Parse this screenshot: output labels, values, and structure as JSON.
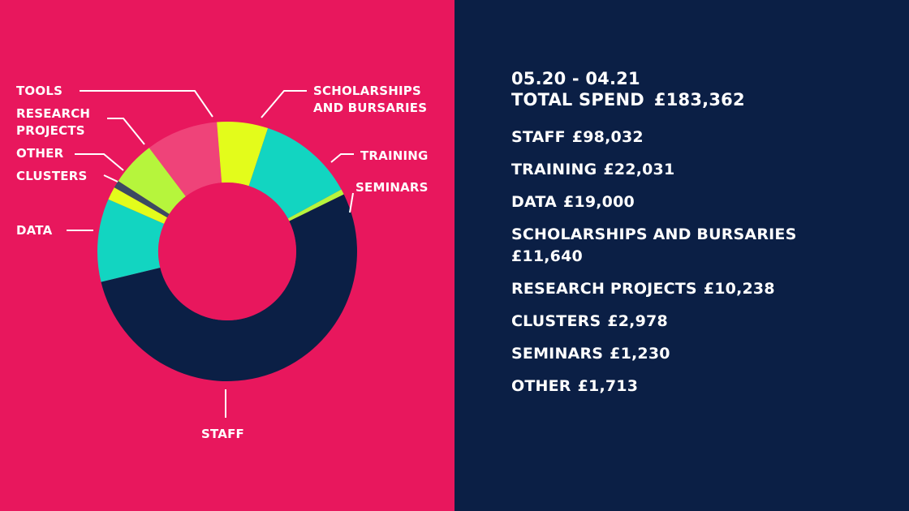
{
  "colors": {
    "left_background": "#e8175d",
    "right_background": "#0b1f45",
    "text": "#ffffff"
  },
  "summary": {
    "period": "05.20 - 04.21",
    "total_label": "TOTAL SPEND",
    "total_value": "£183,362"
  },
  "breakdown": [
    {
      "name": "STAFF",
      "amount": "£98,032"
    },
    {
      "name": "TRAINING",
      "amount": "£22,031"
    },
    {
      "name": "DATA",
      "amount": "£19,000"
    },
    {
      "name": "SCHOLARSHIPS AND BURSARIES",
      "amount": "£11,640"
    },
    {
      "name": "RESEARCH PROJECTS",
      "amount": "£10,238"
    },
    {
      "name": "CLUSTERS",
      "amount": "£2,978"
    },
    {
      "name": "SEMINARS",
      "amount": "£1,230"
    },
    {
      "name": "OTHER",
      "amount": "£1,713"
    }
  ],
  "chart_data": {
    "type": "pie",
    "donut": true,
    "center_color": "#e8175d",
    "slices": [
      {
        "label": "TOOLS",
        "label_lines": [
          "TOOLS"
        ],
        "value": 16500,
        "color": "#ef4379"
      },
      {
        "label": "SCHOLARSHIPS AND BURSARIES",
        "label_lines": [
          "SCHOLARSHIPS",
          "AND BURSARIES"
        ],
        "value": 11640,
        "color": "#e3fc1b"
      },
      {
        "label": "TRAINING",
        "label_lines": [
          "TRAINING"
        ],
        "value": 22031,
        "color": "#12d5c1"
      },
      {
        "label": "SEMINARS",
        "label_lines": [
          "SEMINARS"
        ],
        "value": 1230,
        "color": "#b6f53c"
      },
      {
        "label": "STAFF",
        "label_lines": [
          "STAFF"
        ],
        "value": 98032,
        "color": "#0b1f45"
      },
      {
        "label": "DATA",
        "label_lines": [
          "DATA"
        ],
        "value": 19000,
        "color": "#12d5c1"
      },
      {
        "label": "CLUSTERS",
        "label_lines": [
          "CLUSTERS"
        ],
        "value": 2978,
        "color": "#e3fc1b"
      },
      {
        "label": "OTHER",
        "label_lines": [
          "OTHER"
        ],
        "value": 1713,
        "color": "#3b4a62"
      },
      {
        "label": "RESEARCH PROJECTS",
        "label_lines": [
          "RESEARCH",
          "PROJECTS"
        ],
        "value": 10238,
        "color": "#b6f53c"
      }
    ]
  }
}
